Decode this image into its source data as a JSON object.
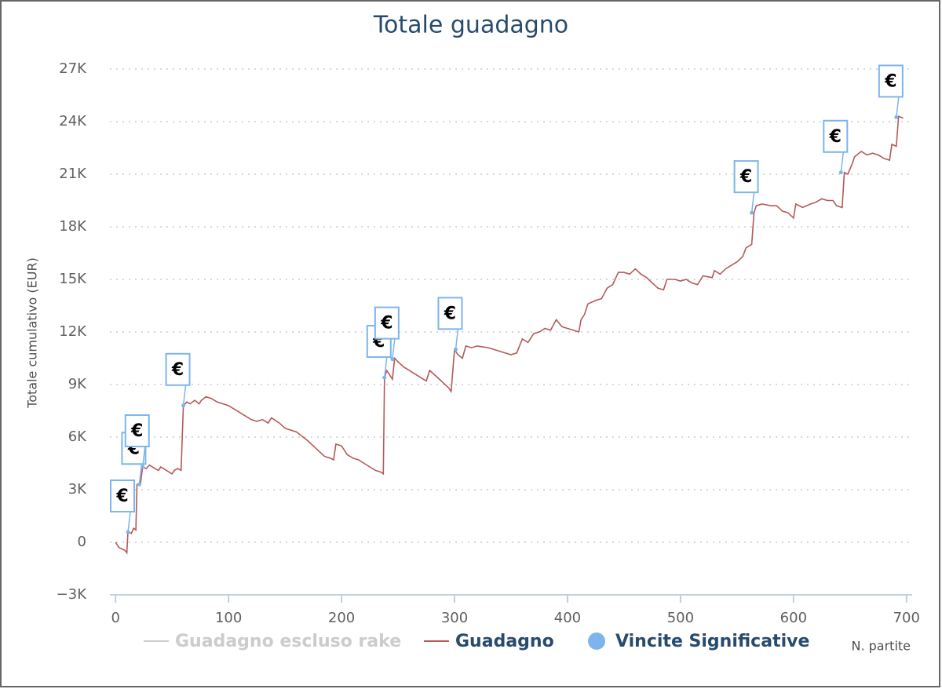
{
  "chart_data": {
    "type": "line",
    "title": "Totale guadagno",
    "y_label": "Totale cumulativo (EUR)",
    "x_label": "N. partite",
    "marker_label": "€",
    "xlim": [
      -5,
      705
    ],
    "xticks": [
      0,
      100,
      200,
      300,
      400,
      500,
      600,
      700
    ],
    "ylim": [
      -3000,
      27000
    ],
    "yticks": [
      {
        "value": -3000,
        "label": "−3K"
      },
      0,
      {
        "value": 3000,
        "label": "3K"
      },
      {
        "value": 6000,
        "label": "6K"
      },
      {
        "value": 9000,
        "label": "9K"
      },
      {
        "value": 12000,
        "label": "12K"
      },
      {
        "value": 15000,
        "label": "15K"
      },
      {
        "value": 18000,
        "label": "18K"
      },
      {
        "value": 21000,
        "label": "21K"
      },
      {
        "value": 24000,
        "label": "24K"
      },
      {
        "value": 27000,
        "label": "27K"
      }
    ],
    "grid": true,
    "series": [
      {
        "name": "Guadagno escluso rake",
        "color": "#cccccc",
        "visible": false,
        "x": [],
        "values": []
      },
      {
        "name": "Guadagno",
        "color": "#b5595a",
        "visible": true,
        "x": [
          0,
          3,
          8,
          10,
          11,
          14,
          16,
          18,
          19,
          22,
          24,
          27,
          30,
          35,
          38,
          40,
          45,
          50,
          52,
          55,
          58,
          60,
          63,
          66,
          70,
          74,
          76,
          80,
          85,
          90,
          100,
          110,
          120,
          125,
          130,
          135,
          138,
          145,
          150,
          160,
          170,
          180,
          185,
          190,
          193,
          195,
          200,
          205,
          210,
          215,
          220,
          225,
          230,
          235,
          237,
          238,
          240,
          245,
          247,
          250,
          255,
          260,
          265,
          270,
          275,
          278,
          285,
          290,
          295,
          297,
          300,
          303,
          307,
          310,
          315,
          320,
          330,
          340,
          350,
          355,
          360,
          365,
          370,
          375,
          380,
          385,
          390,
          395,
          400,
          410,
          412,
          415,
          418,
          425,
          430,
          435,
          440,
          445,
          450,
          455,
          460,
          465,
          470,
          475,
          480,
          485,
          488,
          495,
          500,
          505,
          510,
          515,
          520,
          528,
          530,
          535,
          540,
          545,
          550,
          555,
          558,
          563,
          565,
          567,
          572,
          580,
          585,
          590,
          595,
          600,
          602,
          608,
          615,
          620,
          625,
          630,
          635,
          638,
          643,
          645,
          648,
          652,
          654,
          660,
          665,
          670,
          675,
          680,
          685,
          687,
          691,
          693,
          697
        ],
        "values": [
          0,
          -300,
          -450,
          -600,
          600,
          500,
          800,
          700,
          3300,
          3300,
          4300,
          4200,
          4400,
          4200,
          4100,
          4300,
          4100,
          3900,
          4100,
          4200,
          4100,
          7800,
          8000,
          7900,
          8100,
          7900,
          8100,
          8300,
          8200,
          8000,
          7800,
          7400,
          7000,
          6900,
          7000,
          6800,
          7100,
          6800,
          6500,
          6300,
          5800,
          5200,
          4900,
          4800,
          4700,
          5600,
          5500,
          5000,
          4800,
          4700,
          4500,
          4300,
          4100,
          4000,
          3900,
          9400,
          9800,
          9300,
          10500,
          10300,
          10000,
          9800,
          9600,
          9400,
          9200,
          9800,
          9400,
          9100,
          8800,
          8600,
          11000,
          10700,
          10500,
          11200,
          11100,
          11200,
          11100,
          10900,
          10700,
          10800,
          11600,
          11400,
          11900,
          12000,
          12200,
          12100,
          12700,
          12300,
          12200,
          12000,
          12700,
          13000,
          13600,
          13800,
          13900,
          14500,
          14700,
          15400,
          15400,
          15300,
          15600,
          15300,
          15100,
          14800,
          14500,
          14400,
          15000,
          15000,
          14900,
          15000,
          14800,
          14700,
          15200,
          15100,
          15500,
          15300,
          15600,
          15800,
          16000,
          16300,
          16800,
          17000,
          18800,
          19200,
          19300,
          19200,
          19200,
          18900,
          18800,
          18500,
          19300,
          19100,
          19300,
          19400,
          19600,
          19500,
          19500,
          19200,
          19100,
          21100,
          21000,
          21600,
          22000,
          22300,
          22100,
          22200,
          22100,
          21900,
          21800,
          22700,
          22600,
          24300,
          24200
        ]
      },
      {
        "name": "Vincite Significative",
        "color": "#7cb5ec",
        "visible": true,
        "marker": "scatter",
        "x": [
          11,
          21,
          24,
          60,
          238,
          245,
          301,
          563,
          642,
          691
        ],
        "values": [
          580,
          3300,
          4300,
          7800,
          9400,
          10450,
          11000,
          18800,
          21100,
          24250
        ]
      }
    ]
  }
}
